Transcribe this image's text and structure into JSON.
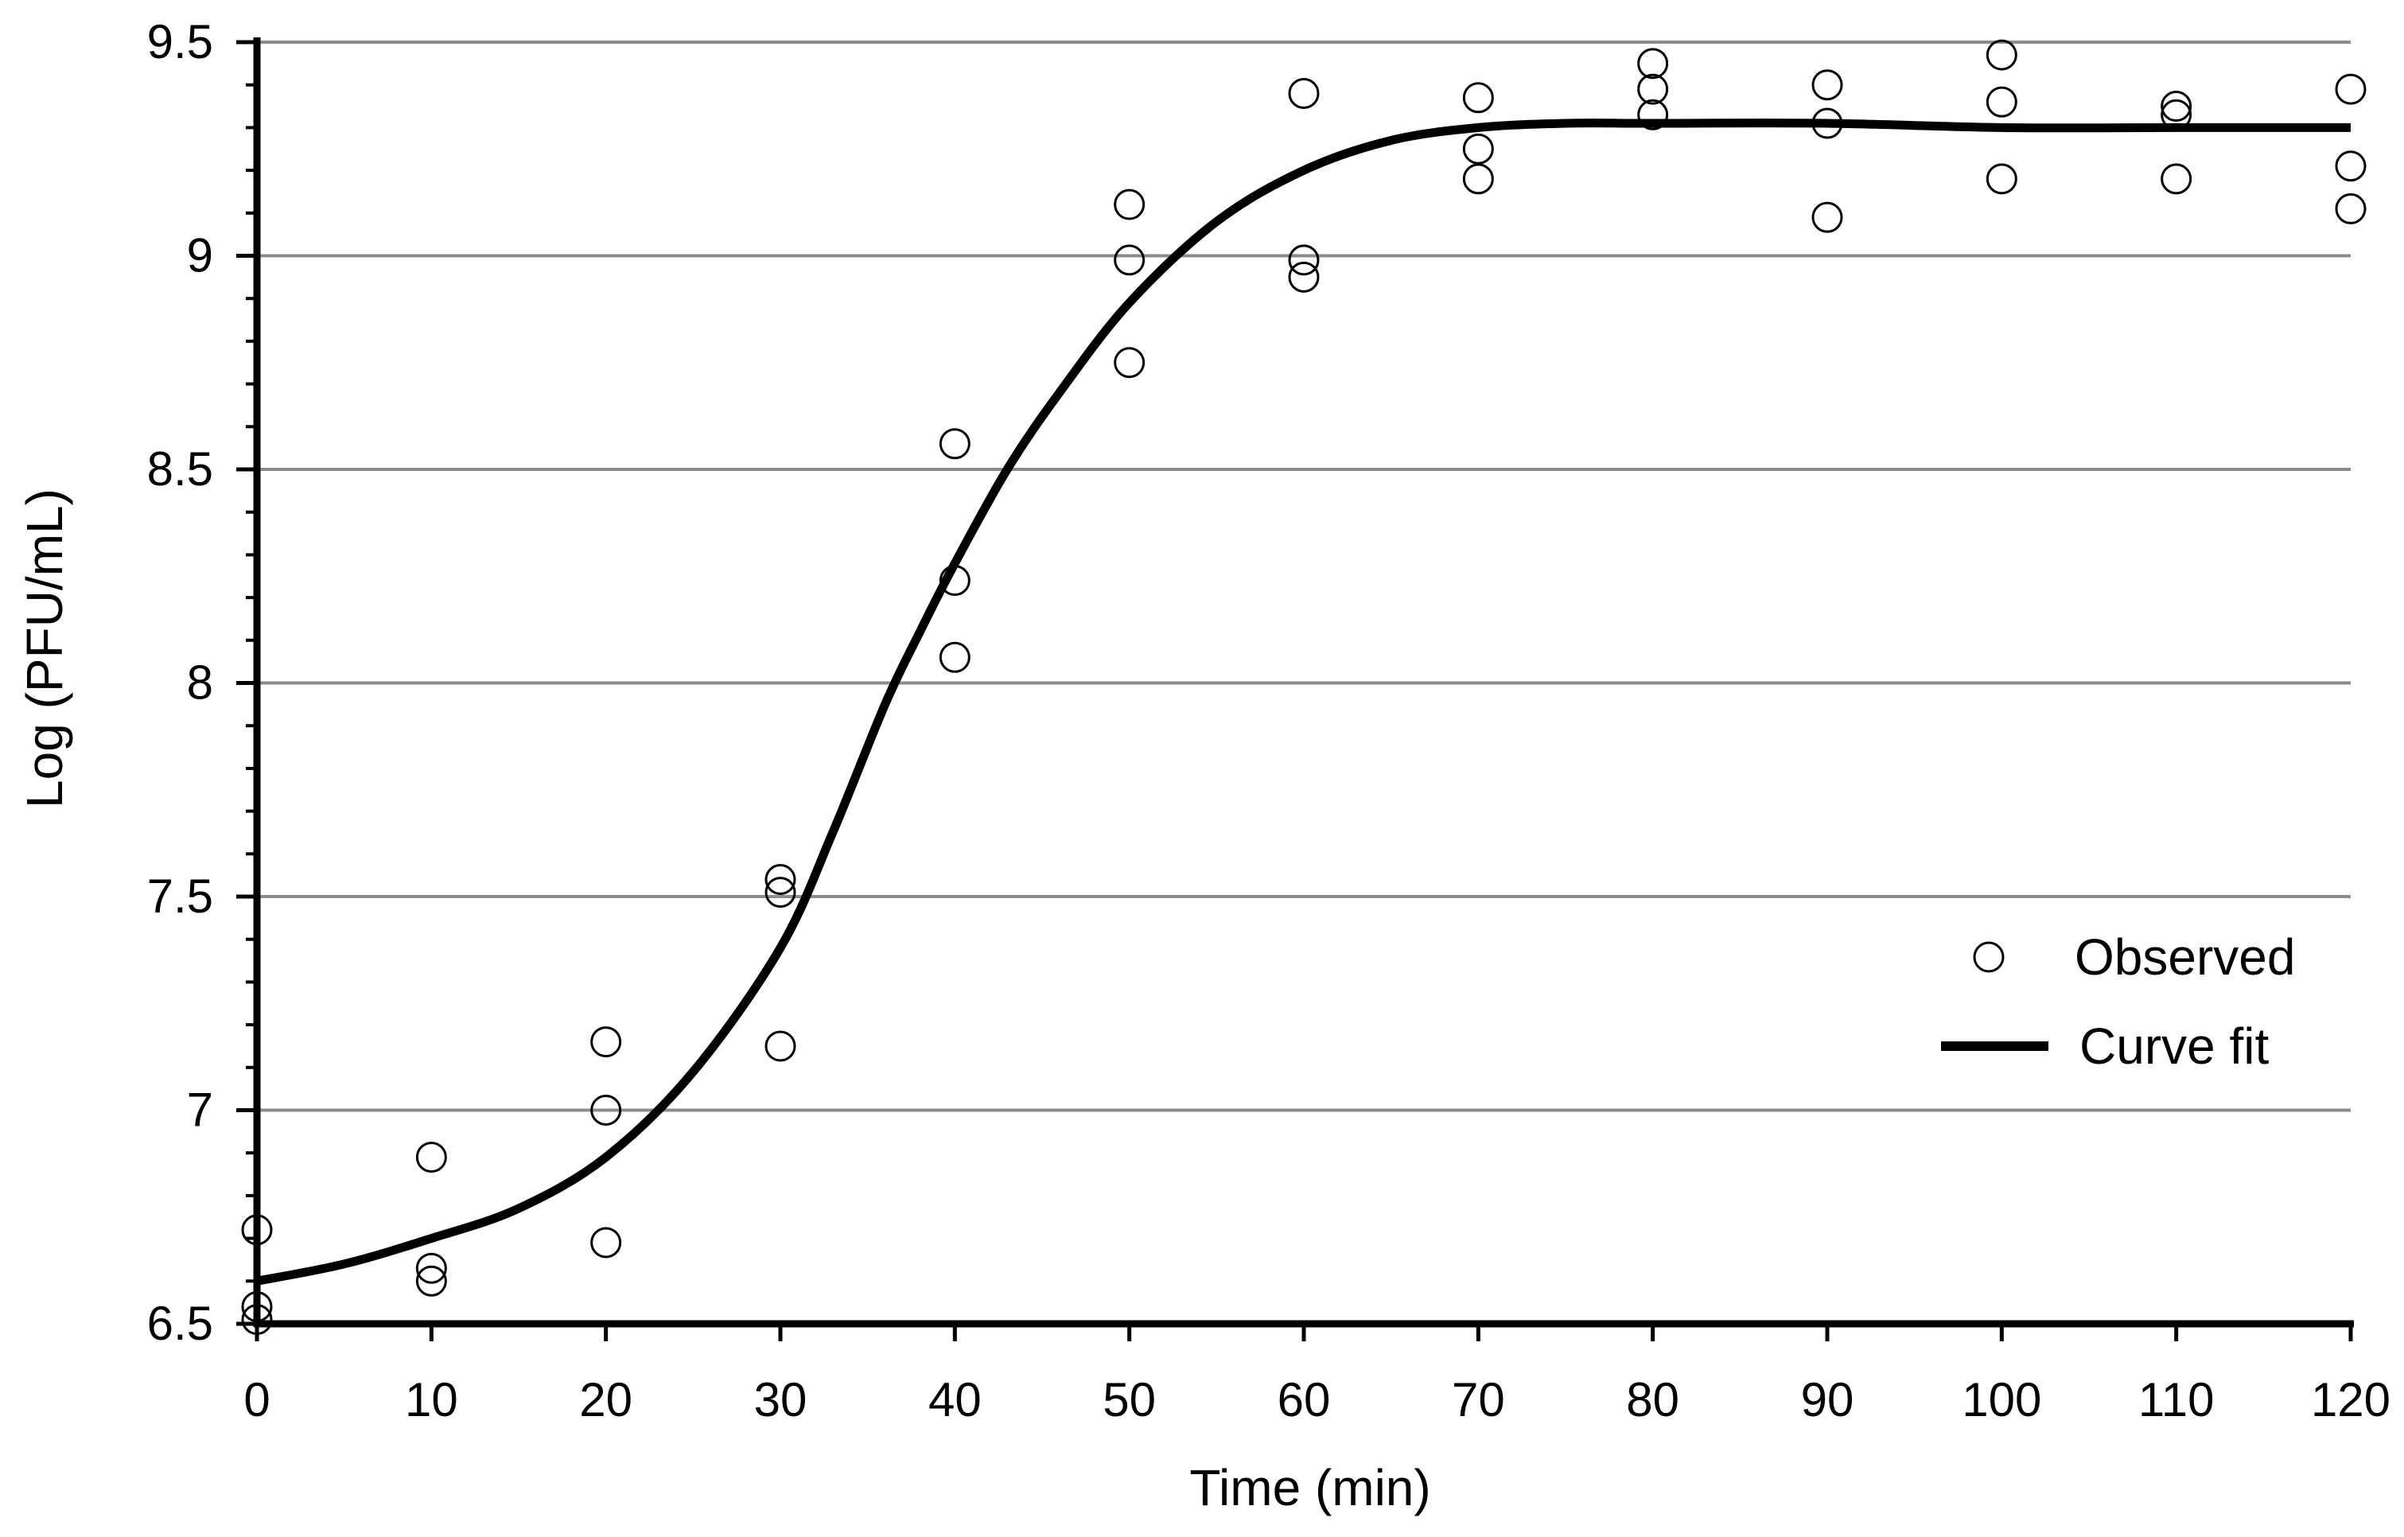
{
  "chart_data": {
    "type": "scatter",
    "title": "",
    "xlabel": "Time (min)",
    "ylabel": "Log (PFU/mL)",
    "xlim": [
      0,
      120
    ],
    "ylim": [
      6.5,
      9.5
    ],
    "xticks": [
      "0",
      "10",
      "20",
      "30",
      "40",
      "50",
      "60",
      "70",
      "80",
      "90",
      "100",
      "110",
      "120"
    ],
    "yticks": [
      "6.5",
      "7",
      "7.5",
      "8",
      "8.5",
      "9",
      "9.5"
    ],
    "grid": "horizontal",
    "legend_position": "bottom-right",
    "series": [
      {
        "name": "Observed",
        "marker": "open-circle",
        "points": [
          [
            0,
            6.72
          ],
          [
            0,
            6.54
          ],
          [
            0,
            6.51
          ],
          [
            10,
            6.89
          ],
          [
            10,
            6.63
          ],
          [
            10,
            6.6
          ],
          [
            20,
            7.16
          ],
          [
            20,
            7.0
          ],
          [
            20,
            6.69
          ],
          [
            30,
            7.54
          ],
          [
            30,
            7.51
          ],
          [
            30,
            7.15
          ],
          [
            40,
            8.56
          ],
          [
            40,
            8.24
          ],
          [
            40,
            8.06
          ],
          [
            50,
            9.12
          ],
          [
            50,
            8.99
          ],
          [
            50,
            8.75
          ],
          [
            60,
            9.38
          ],
          [
            60,
            8.99
          ],
          [
            60,
            8.95
          ],
          [
            70,
            9.37
          ],
          [
            70,
            9.25
          ],
          [
            70,
            9.18
          ],
          [
            80,
            9.45
          ],
          [
            80,
            9.39
          ],
          [
            80,
            9.33
          ],
          [
            90,
            9.4
          ],
          [
            90,
            9.31
          ],
          [
            90,
            9.09
          ],
          [
            100,
            9.47
          ],
          [
            100,
            9.36
          ],
          [
            100,
            9.18
          ],
          [
            110,
            9.35
          ],
          [
            110,
            9.33
          ],
          [
            110,
            9.18
          ],
          [
            120,
            9.39
          ],
          [
            120,
            9.21
          ],
          [
            120,
            9.11
          ]
        ]
      },
      {
        "name": "Curve fit",
        "marker": "line",
        "points": [
          [
            0,
            6.6
          ],
          [
            5,
            6.64
          ],
          [
            10,
            6.7
          ],
          [
            15,
            6.77
          ],
          [
            20,
            6.89
          ],
          [
            25,
            7.09
          ],
          [
            30,
            7.38
          ],
          [
            33,
            7.65
          ],
          [
            36,
            7.95
          ],
          [
            38,
            8.12
          ],
          [
            40,
            8.28
          ],
          [
            43,
            8.5
          ],
          [
            46,
            8.68
          ],
          [
            50,
            8.89
          ],
          [
            55,
            9.08
          ],
          [
            60,
            9.2
          ],
          [
            65,
            9.27
          ],
          [
            70,
            9.3
          ],
          [
            75,
            9.31
          ],
          [
            80,
            9.31
          ],
          [
            90,
            9.31
          ],
          [
            100,
            9.3
          ],
          [
            110,
            9.3
          ],
          [
            120,
            9.3
          ]
        ]
      }
    ]
  }
}
